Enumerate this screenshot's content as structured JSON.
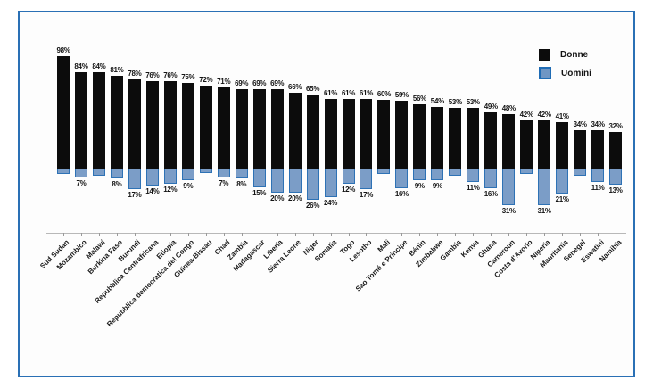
{
  "legend": {
    "donne": "Donne",
    "uomini": "Uomini"
  },
  "colors": {
    "donne_bar": "#0c0c0c",
    "uomini_bar_fill": "#7b9dc7",
    "uomini_bar_border": "#2e72b5",
    "frame_border": "#2a70b5",
    "axis_line": "#b8b8b8",
    "background": "#fdfdfd"
  },
  "chart_data": {
    "type": "bar",
    "subtype": "diverging-vertical",
    "unit": "%",
    "grid": false,
    "legend_position": "top-right",
    "categories": [
      "Sud Sudan",
      "Mozambico",
      "Malawi",
      "Burkina Faso",
      "Burundi",
      "Repubblica Centrafricana",
      "Etiopia",
      "Repubblica democratica del Congo",
      "Guinea-Bissau",
      "Chad",
      "Zambia",
      "Madagascar",
      "Liberia",
      "Sierra Leone",
      "Niger",
      "Somalia",
      "Togo",
      "Lesotho",
      "Mali",
      "Sao Tomé e Principe",
      "Bénin",
      "Zimbabwe",
      "Gambia",
      "Kenya",
      "Ghana",
      "Cameroun",
      "Costa d'Avorio",
      "Nigeria",
      "Mauritania",
      "Senegal",
      "Eswatini",
      "Namibia"
    ],
    "series": [
      {
        "name": "Donne",
        "direction": "up",
        "color": "#0c0c0c",
        "values": [
          98,
          84,
          84,
          81,
          78,
          76,
          76,
          75,
          72,
          71,
          69,
          69,
          69,
          66,
          65,
          61,
          61,
          61,
          60,
          59,
          56,
          54,
          53,
          53,
          49,
          48,
          42,
          42,
          41,
          34,
          34,
          32
        ],
        "labels": [
          "98%",
          "84%",
          "84%",
          "81%",
          "78%",
          "76%",
          "76%",
          "75%",
          "72%",
          "71%",
          "69%",
          "69%",
          "69%",
          "66%",
          "65%",
          "61%",
          "61%",
          "61%",
          "60%",
          "59%",
          "56%",
          "54%",
          "53%",
          "53%",
          "49%",
          "48%",
          "42%",
          "42%",
          "41%",
          "34%",
          "34%",
          "32%"
        ]
      },
      {
        "name": "Uomini",
        "direction": "down",
        "color": "#7b9dc7",
        "values": [
          4,
          7,
          5,
          8,
          17,
          14,
          12,
          9,
          3,
          7,
          8,
          15,
          20,
          20,
          26,
          24,
          12,
          17,
          4,
          16,
          9,
          9,
          5,
          11,
          16,
          31,
          4,
          31,
          21,
          5,
          11,
          13
        ],
        "labels": [
          "",
          "7%",
          "",
          "8%",
          "17%",
          "14%",
          "12%",
          "9%",
          "",
          "7%",
          "8%",
          "15%",
          "20%",
          "20%",
          "26%",
          "24%",
          "12%",
          "17%",
          "",
          "16%",
          "9%",
          "9%",
          "",
          "11%",
          "16%",
          "31%",
          "",
          "31%",
          "21%",
          "",
          "11%",
          "13%"
        ]
      }
    ]
  }
}
